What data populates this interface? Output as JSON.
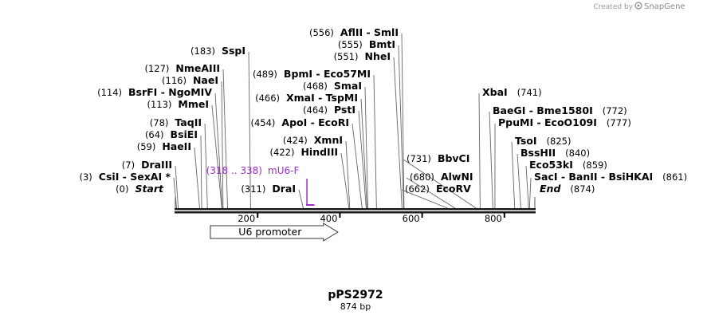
{
  "credit": {
    "text": "Created by",
    "brand": "SnapGene"
  },
  "plasmid": {
    "name": "pPS2972",
    "size": "874 bp",
    "length": 874
  },
  "ruler": {
    "ticks": [
      200,
      400,
      600,
      800
    ],
    "labels": [
      "200",
      "400",
      "600",
      "800"
    ]
  },
  "sites": [
    {
      "id": "start",
      "pos": 0,
      "pos_label": "(0)",
      "name": "Start",
      "italic": true
    },
    {
      "id": "csii",
      "pos": 3,
      "pos_label": "(3)",
      "name": "CsiI  - SexAI *"
    },
    {
      "id": "draiii",
      "pos": 7,
      "pos_label": "(7)",
      "name": "DraIII"
    },
    {
      "id": "haeii",
      "pos": 59,
      "pos_label": "(59)",
      "name": "HaeII"
    },
    {
      "id": "bsiei",
      "pos": 64,
      "pos_label": "(64)",
      "name": "BsiEI"
    },
    {
      "id": "taqii",
      "pos": 78,
      "pos_label": "(78)",
      "name": "TaqII"
    },
    {
      "id": "mmei",
      "pos": 113,
      "pos_label": "(113)",
      "name": "MmeI"
    },
    {
      "id": "bsrfi",
      "pos": 114,
      "pos_label": "(114)",
      "name": "BsrFI  - NgoMIV"
    },
    {
      "id": "naei",
      "pos": 116,
      "pos_label": "(116)",
      "name": "NaeI"
    },
    {
      "id": "nmeaiii",
      "pos": 127,
      "pos_label": "(127)",
      "name": "NmeAIII"
    },
    {
      "id": "sspi",
      "pos": 183,
      "pos_label": "(183)",
      "name": "SspI"
    },
    {
      "id": "drai",
      "pos": 311,
      "pos_label": "(311)",
      "name": "DraI"
    },
    {
      "id": "hindiii",
      "pos": 422,
      "pos_label": "(422)",
      "name": "HindIII"
    },
    {
      "id": "xmni",
      "pos": 424,
      "pos_label": "(424)",
      "name": "XmnI"
    },
    {
      "id": "apoi",
      "pos": 454,
      "pos_label": "(454)",
      "name": "ApoI  - EcoRI"
    },
    {
      "id": "psti",
      "pos": 464,
      "pos_label": "(464)",
      "name": "PstI"
    },
    {
      "id": "xmai",
      "pos": 466,
      "pos_label": "(466)",
      "name": "XmaI  - TspMI"
    },
    {
      "id": "smai",
      "pos": 468,
      "pos_label": "(468)",
      "name": "SmaI"
    },
    {
      "id": "bpmi",
      "pos": 489,
      "pos_label": "(489)",
      "name": "BpmI  - Eco57MI"
    },
    {
      "id": "nhei",
      "pos": 551,
      "pos_label": "(551)",
      "name": "NheI"
    },
    {
      "id": "bmti",
      "pos": 555,
      "pos_label": "(555)",
      "name": "BmtI"
    },
    {
      "id": "aflii",
      "pos": 556,
      "pos_label": "(556)",
      "name": "AflII  - SmlI"
    },
    {
      "id": "ecorv",
      "pos": 662,
      "pos_label": "(662)",
      "name": "EcoRV"
    },
    {
      "id": "alwni",
      "pos": 680,
      "pos_label": "(680)",
      "name": "AlwNI"
    },
    {
      "id": "bbvci",
      "pos": 731,
      "pos_label": "(731)",
      "name": "BbvCI"
    },
    {
      "id": "xbai",
      "pos": 741,
      "pos_label": "(741)",
      "name": "XbaI"
    },
    {
      "id": "baegi",
      "pos": 772,
      "pos_label": "(772)",
      "name": "BaeGI  - Bme1580I"
    },
    {
      "id": "ppumi",
      "pos": 777,
      "pos_label": "(777)",
      "name": "PpuMI  - EcoO109I"
    },
    {
      "id": "tsoi",
      "pos": 825,
      "pos_label": "(825)",
      "name": "TsoI"
    },
    {
      "id": "bsshii",
      "pos": 840,
      "pos_label": "(840)",
      "name": "BssHII"
    },
    {
      "id": "eco53ki",
      "pos": 859,
      "pos_label": "(859)",
      "name": "Eco53kI"
    },
    {
      "id": "saci",
      "pos": 861,
      "pos_label": "(861)",
      "name": "SacI  - BanII  - BsiHKAI"
    },
    {
      "id": "end",
      "pos": 874,
      "pos_label": "(874)",
      "name": "End",
      "italic": true
    }
  ],
  "primer": {
    "name": "mU6-F",
    "range_label": "(318 .. 338)",
    "start": 318,
    "end": 338,
    "color": "#9b30c8"
  },
  "feature": {
    "name": "U6 promoter",
    "start": 85,
    "end": 395,
    "direction": "forward"
  },
  "colors": {
    "backbone": "#1a1a1a",
    "primer": "#9b30c8",
    "credit": "#9a9a9a"
  }
}
